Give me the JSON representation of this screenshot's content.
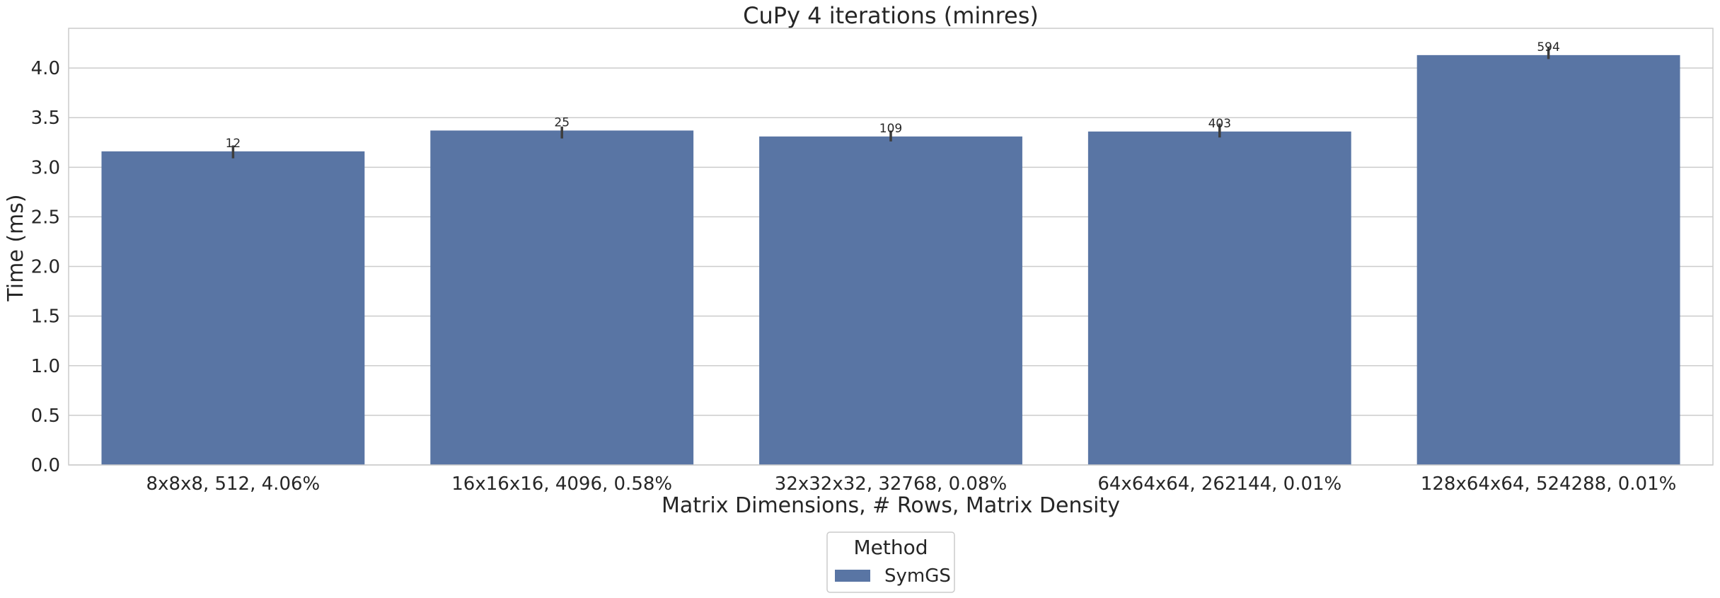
{
  "chart_data": {
    "type": "bar",
    "title": "CuPy 4 iterations (minres)",
    "xlabel": "Matrix Dimensions, # Rows, Matrix Density",
    "ylabel": "Time (ms)",
    "ylim": [
      0,
      4.4
    ],
    "yticks": [
      "0.0",
      "0.5",
      "1.0",
      "1.5",
      "2.0",
      "2.5",
      "3.0",
      "3.5",
      "4.0"
    ],
    "grid": true,
    "categories": [
      "8x8x8, 512, 4.06%",
      "16x16x16, 4096, 0.58%",
      "32x32x32, 32768, 0.08%",
      "64x64x64, 262144, 0.01%",
      "128x64x64, 524288, 0.01%"
    ],
    "series": [
      {
        "name": "SymGS",
        "color": "#5975a4",
        "values": [
          3.16,
          3.37,
          3.31,
          3.36,
          4.13
        ],
        "error_low": [
          3.09,
          3.29,
          3.26,
          3.3,
          4.09
        ],
        "error_high": [
          3.22,
          3.41,
          3.37,
          3.44,
          4.21
        ],
        "bar_labels": [
          "12",
          "25",
          "109",
          "403",
          "594"
        ]
      }
    ],
    "legend": {
      "title": "Method",
      "placement": "bottom-center"
    }
  }
}
